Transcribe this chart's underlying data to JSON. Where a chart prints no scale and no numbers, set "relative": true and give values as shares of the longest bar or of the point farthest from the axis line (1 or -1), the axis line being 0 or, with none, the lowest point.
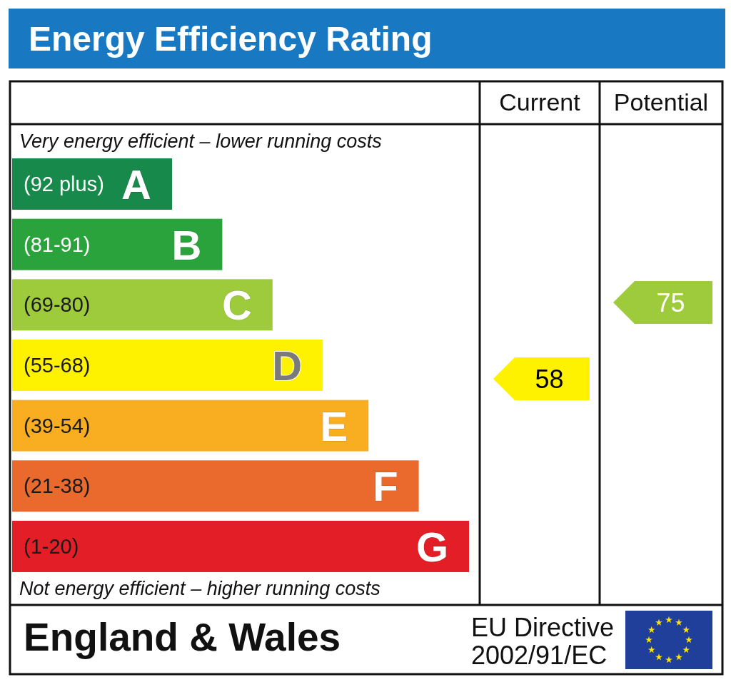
{
  "chart_data": {
    "type": "bar",
    "title": "Energy Efficiency Rating",
    "orientation": "horizontal",
    "relative": true,
    "categories": [
      "(92 plus) A",
      "(81-91) B",
      "(69-80) C",
      "(55-68) D",
      "(39-54) E",
      "(21-38) F",
      "(1-20) G"
    ],
    "values": [
      0.35,
      0.46,
      0.57,
      0.68,
      0.78,
      0.89,
      1
    ],
    "colors": [
      "#17894a",
      "#2ba33c",
      "#9dcb3c",
      "#fff200",
      "#f9ae22",
      "#ea6a2d",
      "#e41e26"
    ],
    "annotations": [
      "Current",
      "Potential",
      "Very energy efficient – lower running costs",
      "Not energy efficient – higher running costs",
      "England & Wales",
      "EU Directive",
      "2002/91/EC",
      "58",
      "75"
    ]
  }
}
